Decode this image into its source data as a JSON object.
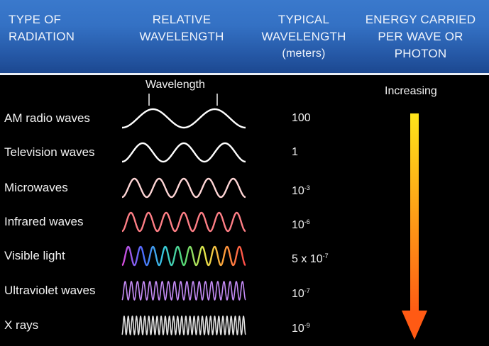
{
  "header": {
    "type_of_radiation": [
      "TYPE OF",
      "RADIATION"
    ],
    "relative_wavelength": [
      "RELATIVE",
      "WAVELENGTH"
    ],
    "typical_wavelength": [
      "TYPICAL",
      "WAVELENGTH"
    ],
    "typical_wavelength_units": "(meters)",
    "energy": [
      "ENERGY CARRIED",
      "PER WAVE OR",
      "PHOTON"
    ]
  },
  "wavelength_marker_label": "Wavelength",
  "energy_arrow_label": "Increasing",
  "rows": [
    {
      "name": "AM radio waves",
      "value_base": "100",
      "value_exp": "",
      "cycles": 2,
      "color": "#ffffff"
    },
    {
      "name": "Television waves",
      "value_base": "1",
      "value_exp": "",
      "cycles": 3,
      "color": "#ffffff"
    },
    {
      "name": "Microwaves",
      "value_base": "10",
      "value_exp": "-3",
      "cycles": 5,
      "color": "#ffd6d6"
    },
    {
      "name": "Infrared waves",
      "value_base": "10",
      "value_exp": "-6",
      "cycles": 7,
      "color": "#ff7f86"
    },
    {
      "name": "Visible light",
      "value_base": "5 x 10",
      "value_exp": "-7",
      "cycles": 10,
      "color": "rainbow"
    },
    {
      "name": "Ultraviolet waves",
      "value_base": "10",
      "value_exp": "-7",
      "cycles": 20,
      "color": "#c58cf6"
    },
    {
      "name": "X rays",
      "value_base": "10",
      "value_exp": "-9",
      "cycles": 30,
      "color": "#e2e2e2"
    }
  ],
  "colors": {
    "header_top": "#3a79cc",
    "header_bottom": "#1c4890",
    "arrow_top": "#ffe51a",
    "arrow_bottom": "#ff5a14",
    "rainbow": [
      "#d94bd8",
      "#4c6cff",
      "#36c9e0",
      "#55d873",
      "#e6e64a",
      "#ff9b3a",
      "#ff4a4a"
    ]
  }
}
